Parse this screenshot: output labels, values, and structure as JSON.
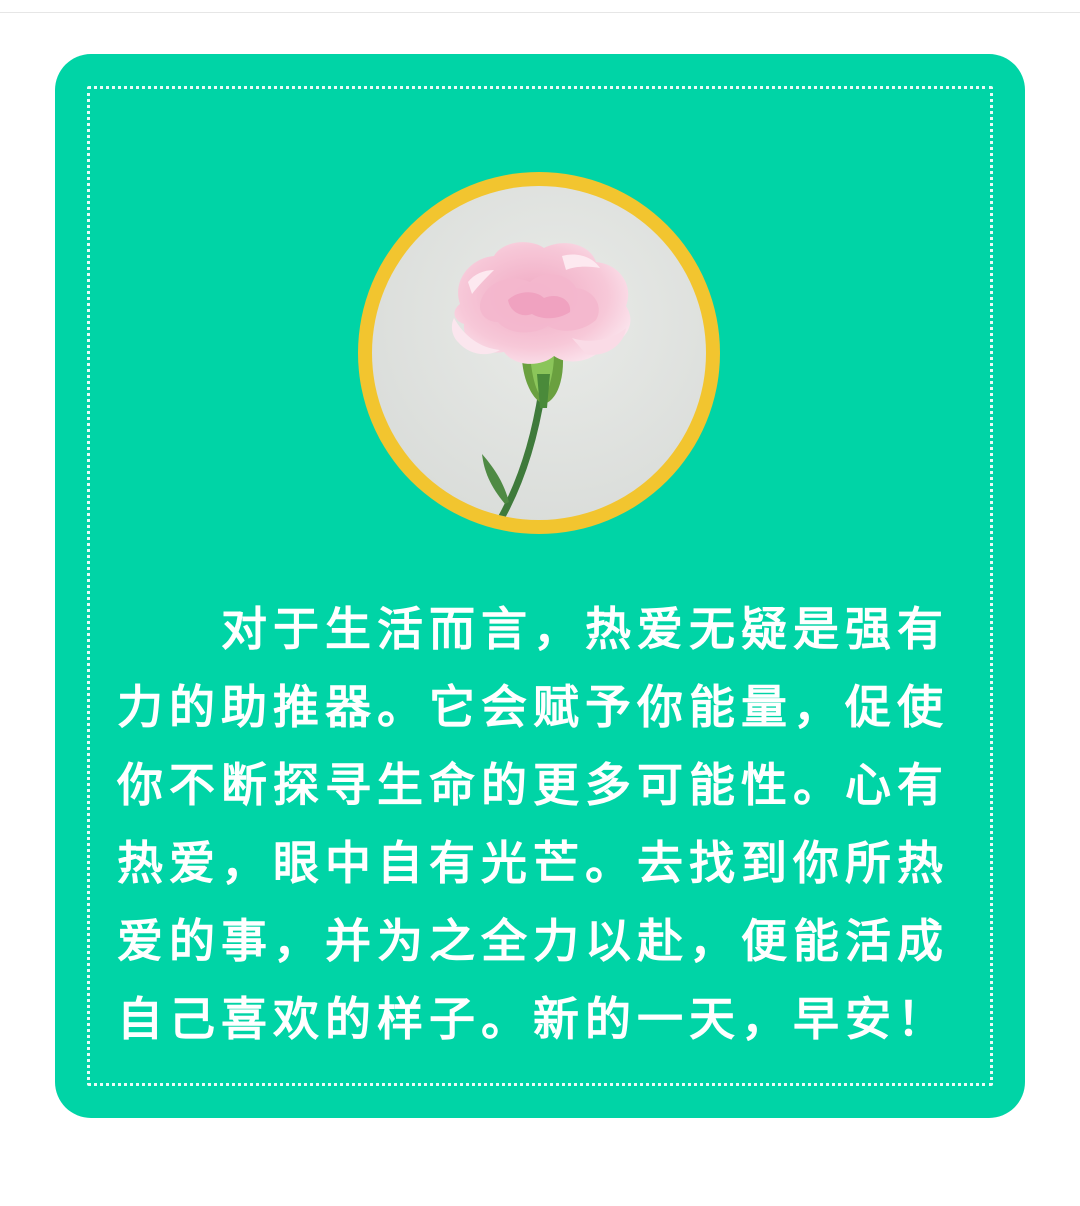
{
  "colors": {
    "card_background": "#00d4a6",
    "ring": "#f2c52f",
    "text": "#ffffff"
  },
  "image": {
    "subject": "pink-carnation-icon"
  },
  "body_text": {
    "lines": [
      "对于生活而言，热爱无疑是强有",
      "力的助推器。它会赋予你能量，促使",
      "你不断探寻生命的更多可能性。心有",
      "热爱，眼中自有光芒。去找到你所热",
      "爱的事，并为之全力以赴，便能活成",
      "自己喜欢的样子。新的一天，早安！"
    ]
  }
}
